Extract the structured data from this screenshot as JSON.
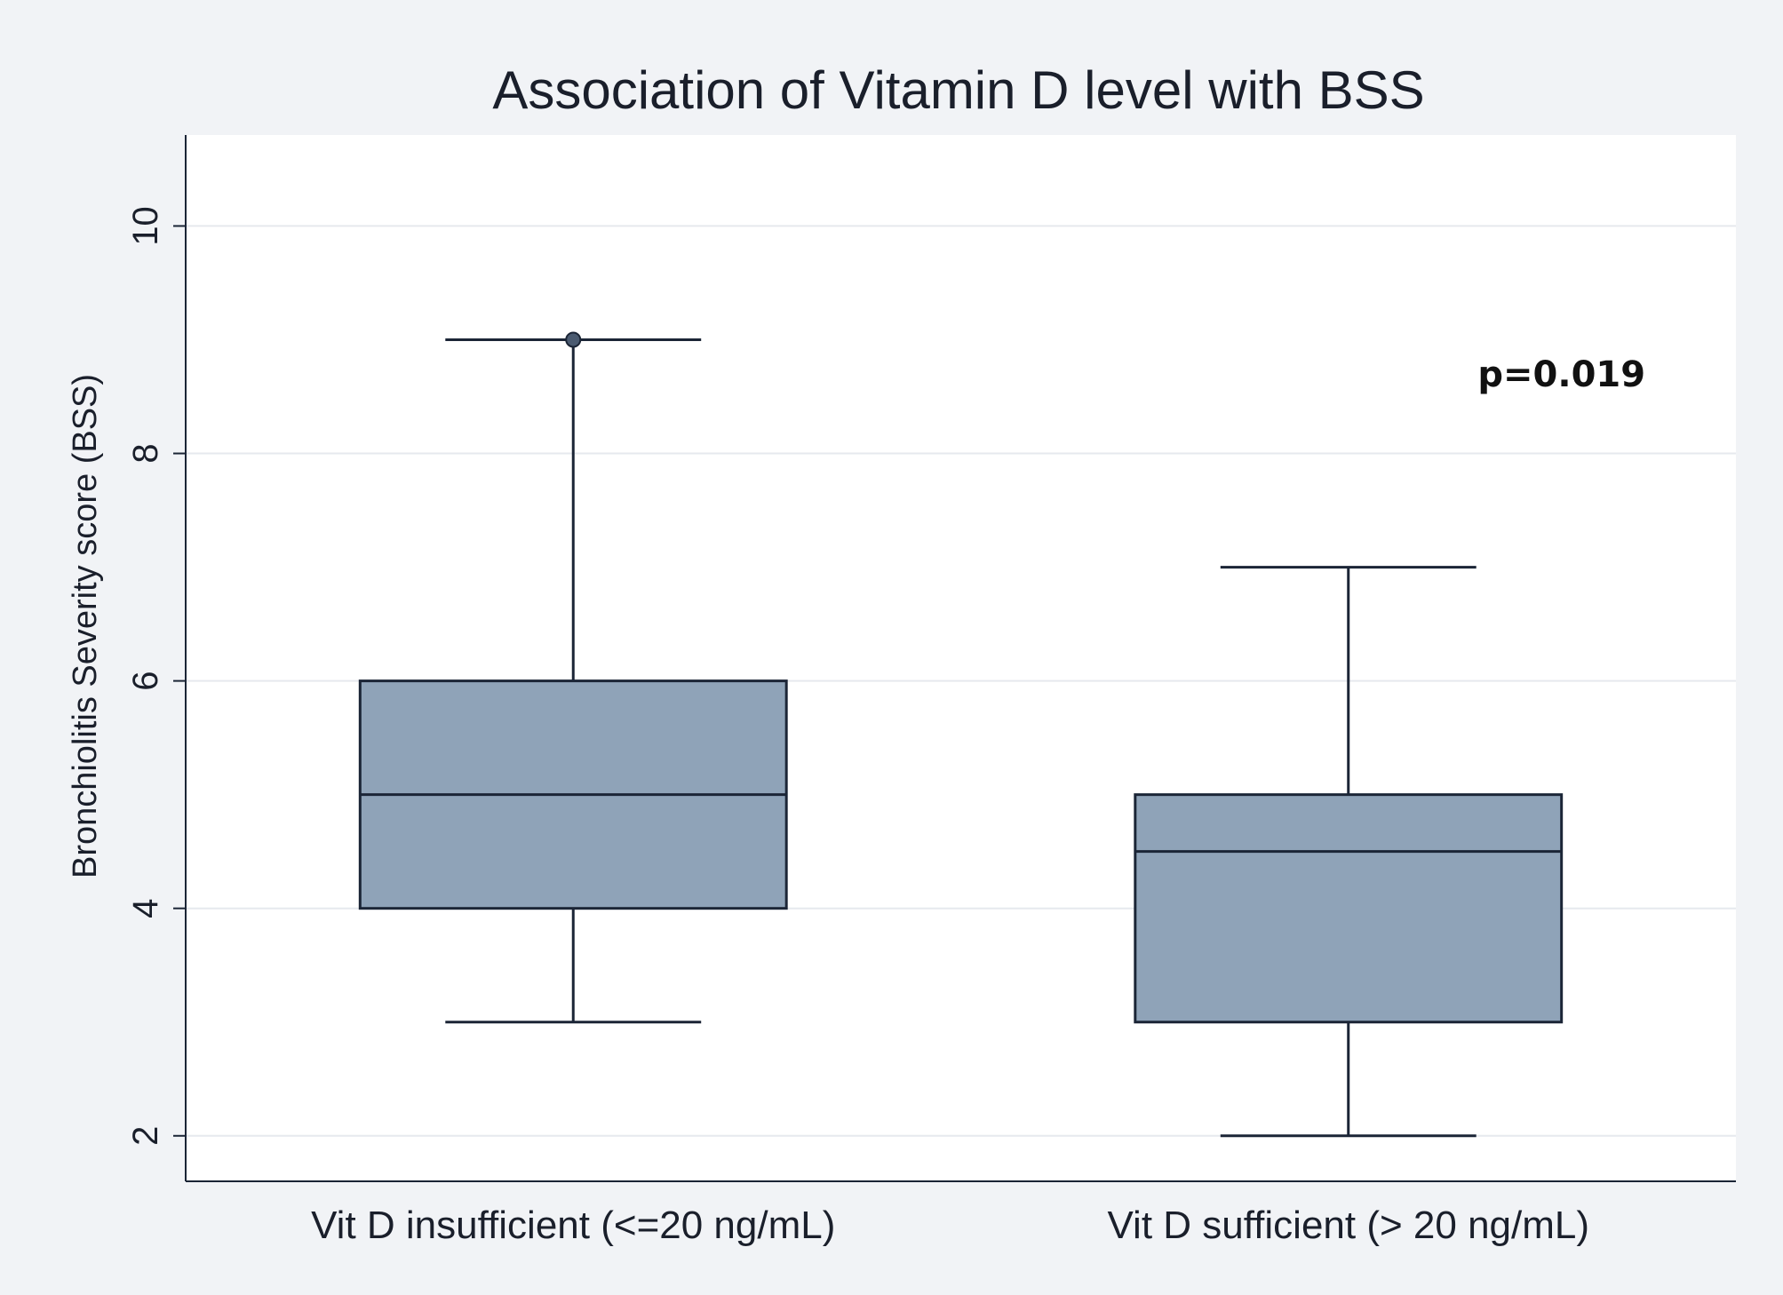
{
  "chart_data": {
    "type": "box",
    "title": "Association of Vitamin D level with BSS",
    "xlabel": "",
    "ylabel": "Bronchiolitis Severity score (BSS)",
    "ylim": [
      1.6,
      10.8
    ],
    "yticks": [
      2,
      4,
      6,
      8,
      10
    ],
    "grid": true,
    "categories": [
      "Vit D insufficient (<=20 ng/mL)",
      "Vit D sufficient (> 20 ng/mL)"
    ],
    "boxes": [
      {
        "name": "Vit D insufficient (<=20 ng/mL)",
        "min": 3,
        "q1": 4,
        "median": 5,
        "q3": 6,
        "max": 9,
        "outliers": [
          9
        ]
      },
      {
        "name": "Vit D sufficient (> 20 ng/mL)",
        "min": 2,
        "q1": 3,
        "median": 4.5,
        "q3": 5,
        "max": 7,
        "outliers": []
      }
    ],
    "annotations": [
      {
        "text": "p=0.019",
        "x": "Vit D sufficient (> 20 ng/mL)",
        "y": 8.7
      }
    ],
    "colors": {
      "box_fill": "#8fa3b8",
      "line": "#1b2536",
      "grid": "#e6e9ee",
      "plot_bg": "#ffffff",
      "page_bg": "#f1f3f6"
    }
  }
}
